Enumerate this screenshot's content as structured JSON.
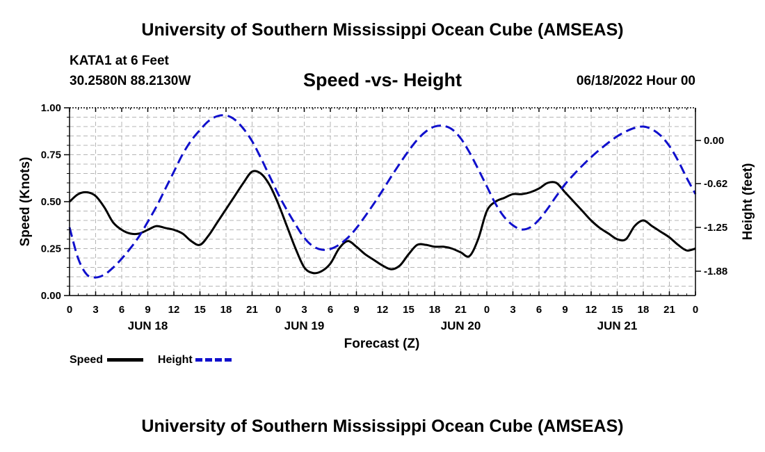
{
  "page": {
    "title_top": "University of Southern Mississippi Ocean Cube (AMSEAS)",
    "station": "KATA1 at 6 Feet",
    "coords": "30.2580N  88.2130W",
    "date": "06/18/2022 Hour 00",
    "title_bottom": "University of Southern Mississippi Ocean Cube (AMSEAS)"
  },
  "legend": {
    "speed_label": "Speed",
    "height_label": "Height"
  },
  "colors": {
    "speed": "#000000",
    "height": "#1010cc",
    "grid": "#b4b4b4"
  },
  "chart_data": {
    "type": "line",
    "title": "Speed -vs- Height",
    "xlabel": "Forecast (Z)",
    "ylabel": "Speed (Knots)",
    "y2label": "Height (feet)",
    "xlim": [
      0,
      72
    ],
    "ylim": [
      0,
      1
    ],
    "y2lim": [
      -2.23,
      0.47
    ],
    "y_ticks": [
      0,
      0.25,
      0.5,
      0.75,
      1.0
    ],
    "y_tick_labels": [
      "0.00",
      "0.25",
      "0.50",
      "0.75",
      "1.00"
    ],
    "y2_ticks": [
      0.0,
      -0.62,
      -1.25,
      -1.88
    ],
    "y2_tick_labels": [
      "0.00",
      "-0.62",
      "-1.25",
      "-1.88"
    ],
    "x_ticks": [
      0,
      3,
      6,
      9,
      12,
      15,
      18,
      21,
      24,
      27,
      30,
      33,
      36,
      39,
      42,
      45,
      48,
      51,
      54,
      57,
      60,
      63,
      66,
      69,
      72
    ],
    "x_tick_labels": [
      "0",
      "3",
      "6",
      "9",
      "12",
      "15",
      "18",
      "21",
      "0",
      "3",
      "6",
      "9",
      "12",
      "15",
      "18",
      "21",
      "0",
      "3",
      "6",
      "9",
      "12",
      "15",
      "18",
      "21",
      "0"
    ],
    "day_labels": [
      {
        "x": 9,
        "label": "JUN 18"
      },
      {
        "x": 27,
        "label": "JUN 19"
      },
      {
        "x": 45,
        "label": "JUN 20"
      },
      {
        "x": 63,
        "label": "JUN 21"
      }
    ],
    "series": [
      {
        "name": "Speed",
        "axis": "left",
        "style": "solid",
        "x": [
          0,
          1,
          2,
          3,
          4,
          5,
          6,
          7,
          8,
          9,
          10,
          11,
          12,
          13,
          14,
          15,
          16,
          17,
          18,
          19,
          20,
          21,
          22,
          23,
          24,
          25,
          26,
          27,
          28,
          29,
          30,
          31,
          32,
          33,
          34,
          35,
          36,
          37,
          38,
          39,
          40,
          41,
          42,
          43,
          44,
          45,
          46,
          47,
          48,
          49,
          50,
          51,
          52,
          53,
          54,
          55,
          56,
          57,
          58,
          59,
          60,
          61,
          62,
          63,
          64,
          65,
          66,
          67,
          68,
          69,
          70,
          71,
          72
        ],
        "values": [
          0.5,
          0.54,
          0.55,
          0.53,
          0.47,
          0.39,
          0.35,
          0.33,
          0.33,
          0.35,
          0.37,
          0.36,
          0.35,
          0.33,
          0.29,
          0.27,
          0.32,
          0.39,
          0.46,
          0.53,
          0.6,
          0.66,
          0.65,
          0.59,
          0.49,
          0.37,
          0.25,
          0.15,
          0.12,
          0.13,
          0.17,
          0.25,
          0.29,
          0.26,
          0.22,
          0.19,
          0.16,
          0.14,
          0.16,
          0.22,
          0.27,
          0.27,
          0.26,
          0.26,
          0.25,
          0.23,
          0.21,
          0.3,
          0.45,
          0.5,
          0.52,
          0.54,
          0.54,
          0.55,
          0.57,
          0.6,
          0.6,
          0.55,
          0.5,
          0.45,
          0.4,
          0.36,
          0.33,
          0.3,
          0.3,
          0.37,
          0.4,
          0.37,
          0.34,
          0.31,
          0.27,
          0.24,
          0.25
        ]
      },
      {
        "name": "Height",
        "axis": "right",
        "style": "dashed",
        "x": [
          0,
          1,
          2,
          3,
          4,
          5,
          6,
          7,
          8,
          9,
          10,
          11,
          12,
          13,
          14,
          15,
          16,
          17,
          18,
          19,
          20,
          21,
          22,
          23,
          24,
          25,
          26,
          27,
          28,
          29,
          30,
          31,
          32,
          33,
          34,
          35,
          36,
          37,
          38,
          39,
          40,
          41,
          42,
          43,
          44,
          45,
          46,
          47,
          48,
          49,
          50,
          51,
          52,
          53,
          54,
          55,
          56,
          57,
          58,
          59,
          60,
          61,
          62,
          63,
          64,
          65,
          66,
          67,
          68,
          69,
          70,
          71,
          72
        ],
        "values": [
          -1.25,
          -1.7,
          -1.93,
          -1.97,
          -1.93,
          -1.83,
          -1.7,
          -1.55,
          -1.38,
          -1.17,
          -0.95,
          -0.7,
          -0.45,
          -0.2,
          0.0,
          0.15,
          0.28,
          0.35,
          0.36,
          0.3,
          0.17,
          -0.01,
          -0.25,
          -0.51,
          -0.77,
          -1.0,
          -1.21,
          -1.4,
          -1.52,
          -1.57,
          -1.56,
          -1.5,
          -1.4,
          -1.26,
          -1.09,
          -0.91,
          -0.72,
          -0.52,
          -0.33,
          -0.15,
          0.01,
          0.13,
          0.2,
          0.21,
          0.16,
          0.03,
          -0.17,
          -0.41,
          -0.66,
          -0.91,
          -1.1,
          -1.22,
          -1.28,
          -1.25,
          -1.14,
          -0.98,
          -0.8,
          -0.63,
          -0.49,
          -0.36,
          -0.24,
          -0.13,
          -0.03,
          0.06,
          0.13,
          0.18,
          0.2,
          0.16,
          0.07,
          -0.08,
          -0.29,
          -0.54,
          -0.77
        ]
      }
    ]
  }
}
